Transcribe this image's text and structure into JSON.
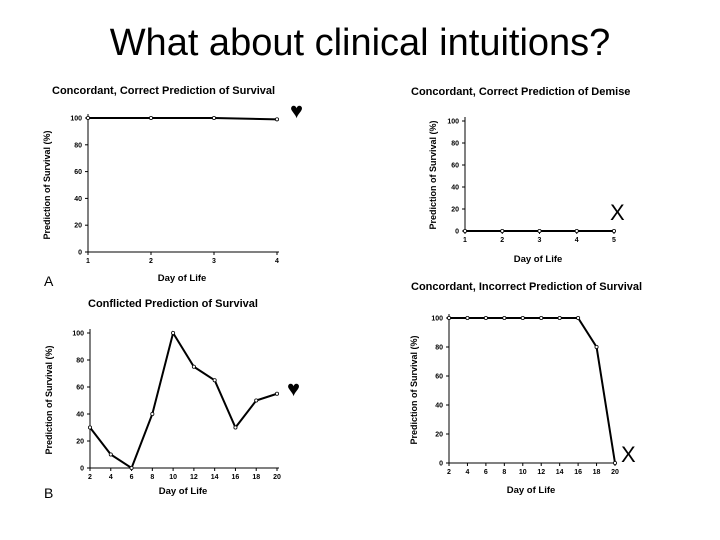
{
  "slide": {
    "title": "What about clinical intuitions?"
  },
  "chart_data": [
    {
      "id": "A",
      "type": "line",
      "title": "Concordant, Correct Prediction of Survival",
      "panel_label": "A",
      "symbol": "♥",
      "xlabel": "Day of Life",
      "ylabel": "Prediction of Survival (%)",
      "x": [
        1,
        2,
        3,
        4
      ],
      "values": [
        100,
        100,
        100,
        99
      ],
      "xticks": [
        1,
        2,
        3,
        4
      ],
      "yticks": [
        0,
        20,
        40,
        60,
        80,
        100
      ],
      "xlim": [
        1,
        4
      ],
      "ylim": [
        0,
        100
      ]
    },
    {
      "id": "TR",
      "type": "line",
      "title": "Concordant, Correct Prediction of Demise",
      "panel_label": "",
      "symbol": "X",
      "xlabel": "Day of Life",
      "ylabel": "Prediction of Survival (%)",
      "x": [
        1,
        2,
        3,
        4,
        5
      ],
      "values": [
        0,
        0,
        0,
        0,
        0
      ],
      "xticks": [
        1,
        2,
        3,
        4,
        5
      ],
      "yticks": [
        0,
        20,
        40,
        60,
        80,
        100
      ],
      "xlim": [
        1,
        5
      ],
      "ylim": [
        0,
        100
      ]
    },
    {
      "id": "B",
      "type": "line",
      "title": "Conflicted Prediction of Survival",
      "panel_label": "B",
      "symbol": "♥",
      "xlabel": "Day of Life",
      "ylabel": "Prediction of Survival (%)",
      "x": [
        2,
        4,
        6,
        8,
        10,
        12,
        14,
        16,
        18,
        20
      ],
      "values": [
        30,
        10,
        0,
        40,
        100,
        75,
        65,
        30,
        50,
        55
      ],
      "xticks": [
        2,
        4,
        6,
        8,
        10,
        12,
        14,
        16,
        18,
        20
      ],
      "yticks": [
        0,
        20,
        40,
        60,
        80,
        100
      ],
      "xlim": [
        2,
        20
      ],
      "ylim": [
        0,
        100
      ]
    },
    {
      "id": "BR",
      "type": "line",
      "title": "Concordant, Incorrect Prediction of Survival",
      "panel_label": "",
      "symbol": "X",
      "xlabel": "Day of Life",
      "ylabel": "Prediction of Survival (%)",
      "x": [
        2,
        4,
        6,
        8,
        10,
        12,
        14,
        16,
        18,
        20
      ],
      "values": [
        100,
        100,
        100,
        100,
        100,
        100,
        100,
        100,
        80,
        0
      ],
      "xticks": [
        2,
        4,
        6,
        8,
        10,
        12,
        14,
        16,
        18,
        20
      ],
      "yticks": [
        0,
        20,
        40,
        60,
        80,
        100
      ],
      "xlim": [
        2,
        20
      ],
      "ylim": [
        0,
        100
      ]
    }
  ]
}
